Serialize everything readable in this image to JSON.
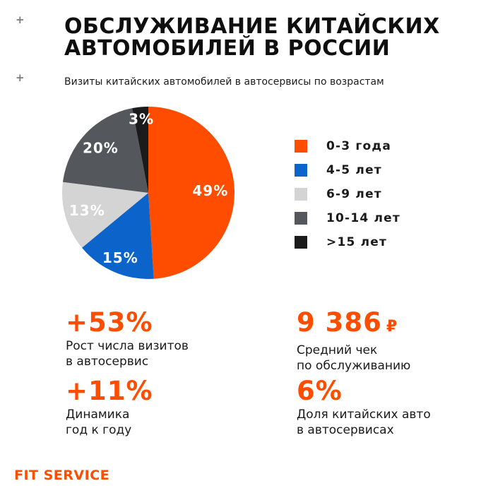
{
  "colors": {
    "accent": "#FF4D00",
    "background": "#FFFFFF",
    "text": "#141414",
    "plus_marks": "#7B7B7B"
  },
  "decorations": {
    "plus_top": "+",
    "plus_bottom": "+"
  },
  "header": {
    "title_line1": "ОБСЛУЖИВАНИЕ КИТАЙСКИХ",
    "title_line2": "АВТОМОБИЛЕЙ В РОССИИ",
    "subtitle": "Визиты китайских автомобилей в автосервисы по возрастам"
  },
  "chart_data": {
    "type": "pie",
    "title": "Визиты китайских автомобилей в автосервисы по возрастам",
    "start_angle_deg": 0,
    "direction": "clockwise",
    "legend_position": "right",
    "slices": [
      {
        "label": "0-3 года",
        "value": 49,
        "display": "49%",
        "color": "#FF4D00",
        "label_radius": 0.72
      },
      {
        "label": "4-5 лет",
        "value": 15,
        "display": "15%",
        "color": "#0C63C9",
        "label_radius": 0.82
      },
      {
        "label": "6-9 лет",
        "value": 13,
        "display": "13%",
        "color": "#D4D4D4",
        "label_radius": 0.74
      },
      {
        "label": "10-14 лет",
        "value": 20,
        "display": "20%",
        "color": "#54575C",
        "label_radius": 0.76
      },
      {
        "label": ">15 лет",
        "value": 3,
        "display": "3%",
        "color": "#1B1B1B",
        "label_radius": 0.86
      }
    ]
  },
  "stats": [
    {
      "value": "+53%",
      "currency": "",
      "desc_line1": "Рост числа визитов",
      "desc_line2": "в автосервис"
    },
    {
      "value": "9 386",
      "currency": "₽",
      "desc_line1": "Средний чек",
      "desc_line2": "по обслуживанию"
    },
    {
      "value": "+11%",
      "currency": "",
      "desc_line1": "Динамика",
      "desc_line2": "год к году"
    },
    {
      "value": "6%",
      "currency": "",
      "desc_line1": "Доля китайских авто",
      "desc_line2": "в автосервисах"
    }
  ],
  "footer": {
    "logo": "FIT SERVICE"
  }
}
